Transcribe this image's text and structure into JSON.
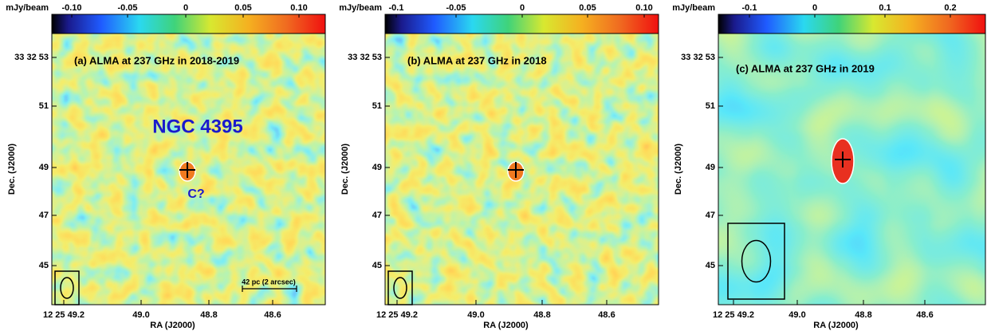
{
  "panels": [
    {
      "colorbar_unit": "mJy/beam",
      "colorbar_ticks": [
        "-0.10",
        "-0.05",
        "0",
        "0.05",
        "0.10"
      ],
      "label": "(a) ALMA at 237 GHz in 2018-2019",
      "annotations": [
        "NGC 4395",
        "C?",
        "42 pc (2 arcsec)"
      ],
      "yticks": [
        "33 32 53",
        "51",
        "49",
        "47",
        "45"
      ],
      "xticks": [
        "12 25 49.2",
        "49.0",
        "48.8",
        "48.6"
      ],
      "ylabel": "Dec. (J2000)",
      "xlabel": "RA (J2000)"
    },
    {
      "colorbar_unit": "mJy/beam",
      "colorbar_ticks": [
        "-0.1",
        "-0.05",
        "0",
        "0.05",
        "0.10"
      ],
      "label": "(b) ALMA at 237 GHz in 2018",
      "annotations": [],
      "yticks": [
        "33 32 53",
        "51",
        "49",
        "47",
        "45"
      ],
      "xticks": [
        "12 25 49.2",
        "49.0",
        "48.8",
        "48.6"
      ],
      "ylabel": "Dec. (J2000)",
      "xlabel": "RA (J2000)"
    },
    {
      "colorbar_unit": "mJy/beam",
      "colorbar_ticks": [
        "-0.1",
        "0",
        "0.1",
        "0.2"
      ],
      "label": "(c) ALMA at 237 GHz in 2019",
      "annotations": [],
      "yticks": [
        "33 32 53",
        "51",
        "49",
        "47",
        "45"
      ],
      "xticks": [
        "12 25 49.2",
        "49.0",
        "48.8",
        "48.6"
      ],
      "ylabel": "Dec. (J2000)",
      "xlabel": "RA (J2000)"
    }
  ]
}
